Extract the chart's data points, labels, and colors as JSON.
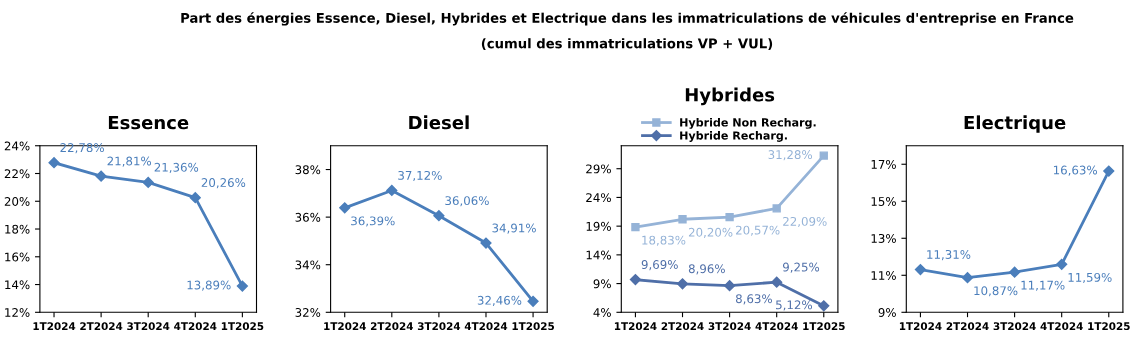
{
  "chart_data": [
    {
      "type": "line",
      "title": "Essence",
      "categories": [
        "1T2024",
        "2T2024",
        "3T2024",
        "4T2024",
        "1T2025"
      ],
      "series": [
        {
          "color": "#4a7ebb",
          "marker": "diamond",
          "values": [
            22.78,
            21.81,
            21.36,
            20.26,
            13.89
          ],
          "value_labels": [
            "22,78%",
            "21,81%",
            "21,36%",
            "20,26%",
            "13,89%"
          ]
        }
      ],
      "annotations": [
        "Part des énergies Essence, Diesel, Hybrides et Electrique dans les immatriculations de véhicules d'entreprise en France",
        "(cumul des immatriculations VP + VUL)"
      ],
      "ylim": [
        12,
        24
      ],
      "yticks": [
        {
          "value": 12,
          "label": "12%"
        },
        {
          "value": 14,
          "label": "14%"
        },
        {
          "value": 16,
          "label": "16%"
        },
        {
          "value": 18,
          "label": "18%"
        },
        {
          "value": 20,
          "label": "20%"
        },
        {
          "value": 22,
          "label": "22%"
        },
        {
          "value": 24,
          "label": "24%"
        }
      ],
      "grid": false,
      "legend": false
    },
    {
      "type": "line",
      "title": "Diesel",
      "categories": [
        "1T2024",
        "2T2024",
        "3T2024",
        "4T2024",
        "1T2025"
      ],
      "series": [
        {
          "color": "#4a7ebb",
          "marker": "diamond",
          "values": [
            36.39,
            37.12,
            36.06,
            34.91,
            32.46
          ],
          "value_labels": [
            "36,39%",
            "37,12%",
            "36,06%",
            "34,91%",
            "32,46%"
          ]
        }
      ],
      "ylim": [
        32,
        39
      ],
      "yticks": [
        {
          "value": 32,
          "label": "32%"
        },
        {
          "value": 34,
          "label": "34%"
        },
        {
          "value": 36,
          "label": "36%"
        },
        {
          "value": 38,
          "label": "38%"
        }
      ],
      "grid": false,
      "legend": false
    },
    {
      "type": "line",
      "title": "Hybrides",
      "categories": [
        "1T2024",
        "2T2024",
        "3T2024",
        "4T2024",
        "1T2025"
      ],
      "series": [
        {
          "name": "Hybride Non Recharg.",
          "color": "#95b3d7",
          "marker": "square",
          "values": [
            18.83,
            20.2,
            20.57,
            22.09,
            31.28
          ],
          "value_labels": [
            "18,83%",
            "20,20%",
            "20,57%",
            "22,09%",
            "31,28%"
          ]
        },
        {
          "name": "Hybride Recharg.",
          "color": "#4f6fa8",
          "marker": "diamond",
          "values": [
            9.69,
            8.96,
            8.63,
            9.25,
            5.12
          ],
          "value_labels": [
            "9,69%",
            "8,96%",
            "8,63%",
            "9,25%",
            "5,12%"
          ]
        }
      ],
      "ylim": [
        4,
        33
      ],
      "yticks": [
        {
          "value": 4,
          "label": "4%"
        },
        {
          "value": 9,
          "label": "9%"
        },
        {
          "value": 14,
          "label": "14%"
        },
        {
          "value": 19,
          "label": "19%"
        },
        {
          "value": 24,
          "label": "24%"
        },
        {
          "value": 29,
          "label": "29%"
        }
      ],
      "grid": false,
      "legend": "top"
    },
    {
      "type": "line",
      "title": "Electrique",
      "categories": [
        "1T2024",
        "2T2024",
        "3T2024",
        "4T2024",
        "1T2025"
      ],
      "series": [
        {
          "color": "#4a7ebb",
          "marker": "diamond",
          "values": [
            11.31,
            10.87,
            11.17,
            11.59,
            16.63
          ],
          "value_labels": [
            "11,31%",
            "10,87%",
            "11,17%",
            "11,59%",
            "16,63%"
          ]
        }
      ],
      "ylim": [
        9,
        18
      ],
      "yticks": [
        {
          "value": 9,
          "label": "9%"
        },
        {
          "value": 11,
          "label": "11%"
        },
        {
          "value": 13,
          "label": "13%"
        },
        {
          "value": 15,
          "label": "15%"
        },
        {
          "value": 17,
          "label": "17%"
        }
      ],
      "grid": false,
      "legend": false
    }
  ]
}
